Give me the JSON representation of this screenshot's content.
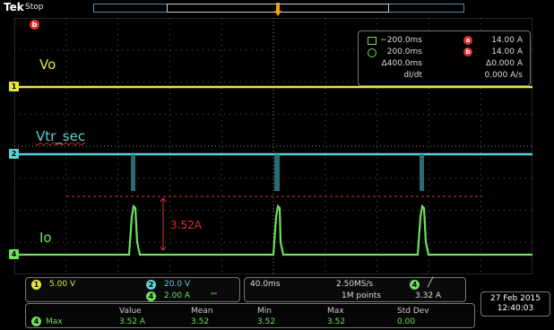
{
  "header": {
    "brand": "Tek",
    "acq_state": "Stop"
  },
  "waveform_labels": {
    "vo": "Vo",
    "vtr": "Vtr_sec",
    "io": "Io"
  },
  "annotation": {
    "current_peak": "3.52A"
  },
  "channel_markers": {
    "ch1": "1",
    "ch2": "2",
    "ch4": "4",
    "cursor_b": "b"
  },
  "cursor_readout": {
    "rows": [
      {
        "time": "−200.0ms",
        "badge": "a",
        "value": "14.00 A"
      },
      {
        "time": "200.0ms",
        "badge": "b",
        "value": "14.00 A"
      },
      {
        "time": "Δ400.0ms",
        "badge": "",
        "value": "Δ0.000 A"
      },
      {
        "time": "dI/dt",
        "badge": "",
        "value": "0.000 A/s"
      }
    ]
  },
  "scale_box": {
    "ch1": {
      "num": "1",
      "value": "5.00 V"
    },
    "ch2": {
      "num": "2",
      "value": "20.0 V"
    },
    "ch4": {
      "num": "4",
      "value": "2.00 A"
    },
    "bw_symbol": "ᴮᵂ"
  },
  "timebase": {
    "scale": "40.0ms",
    "sample_rate": "2.50MS/s",
    "record": "1M points",
    "trigger_channel": "4",
    "trigger_level": "3.32 A"
  },
  "measurements": {
    "headers": [
      "Value",
      "Mean",
      "Min",
      "Max",
      "Std Dev"
    ],
    "rows": [
      {
        "ch": "4",
        "name": "Max",
        "values": [
          "3.52 A",
          "3.52",
          "3.52",
          "3.52",
          "0.00"
        ]
      }
    ]
  },
  "clock": {
    "date": "27 Feb  2015",
    "time": "12:40:03"
  },
  "colors": {
    "ch1": "#e6e63a",
    "ch2": "#5bd1d8",
    "ch4": "#6ee05b",
    "cursor": "#e03030"
  }
}
